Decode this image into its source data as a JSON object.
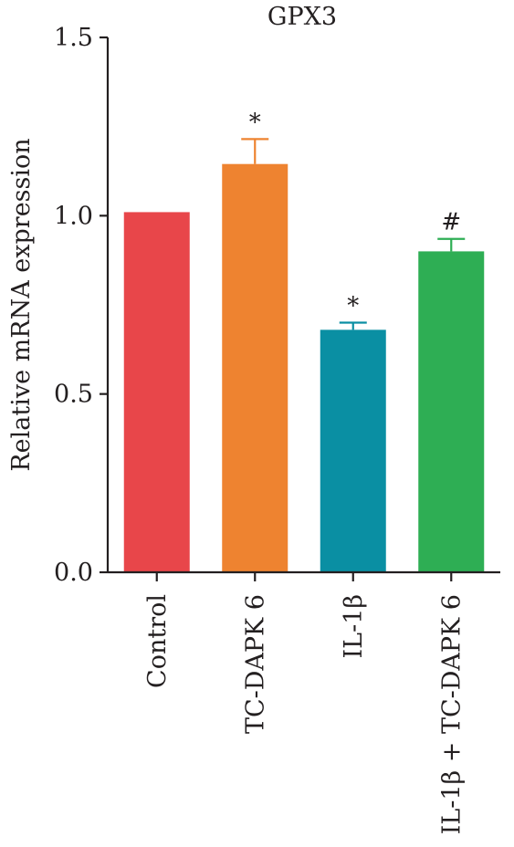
{
  "chart_data": {
    "type": "bar",
    "title": "GPX3",
    "ylabel": "Relative mRNA expression",
    "xlabel": "",
    "ylim": [
      0,
      1.5
    ],
    "yticks": [
      {
        "value": 0.0,
        "label": "0.0"
      },
      {
        "value": 0.5,
        "label": "0.5"
      },
      {
        "value": 1.0,
        "label": "1.0"
      },
      {
        "value": 1.5,
        "label": "1.5"
      }
    ],
    "categories": [
      "Control",
      "TC-DAPK 6",
      "IL-1β",
      "IL-1β + TC-DAPK 6"
    ],
    "values": [
      1.01,
      1.145,
      0.68,
      0.9
    ],
    "errors": [
      0.0,
      0.07,
      0.02,
      0.035
    ],
    "annotations": [
      "",
      "*",
      "*",
      "#"
    ],
    "colors": [
      "#e8464a",
      "#ee8330",
      "#0a8fa3",
      "#2eae54"
    ],
    "grid": false,
    "legend": "none"
  }
}
